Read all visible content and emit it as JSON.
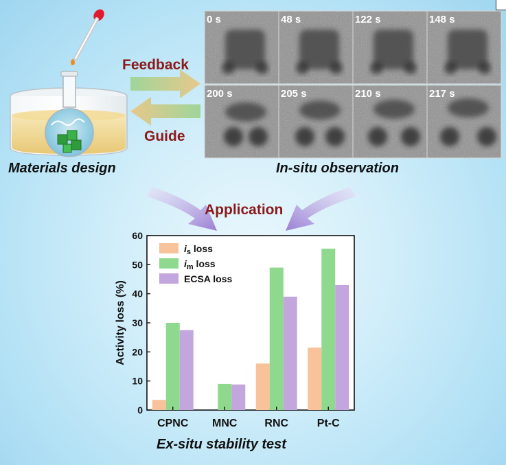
{
  "labels": {
    "feedback": "Feedback",
    "guide": "Guide",
    "materials_design": "Materials design",
    "in_situ_observation": "In-situ observation",
    "application": "Application",
    "ex_situ_stability_test": "Ex-situ stability test"
  },
  "frames": [
    {
      "time": "0 s"
    },
    {
      "time": "48 s"
    },
    {
      "time": "122 s"
    },
    {
      "time": "148 s"
    },
    {
      "time": "200 s"
    },
    {
      "time": "205 s"
    },
    {
      "time": "210 s"
    },
    {
      "time": "217 s"
    }
  ],
  "colors": {
    "feedback_arrow": "#e8c88a",
    "guide_arrow": "#9fd59a",
    "application_arrow": "#a98fd8",
    "is_loss": "#f8c39a",
    "im_loss": "#8fd98f",
    "ecsa_loss": "#c3a6de",
    "label_red": "#8b1a1a"
  },
  "chart_data": {
    "type": "bar",
    "categories": [
      "CPNC",
      "MNC",
      "RNC",
      "Pt-C"
    ],
    "series": [
      {
        "name": "is loss",
        "values": [
          3.5,
          0,
          16,
          21.5
        ]
      },
      {
        "name": "im loss",
        "values": [
          30,
          9,
          49,
          55.5
        ]
      },
      {
        "name": "ECSA loss",
        "values": [
          27.5,
          8.8,
          39,
          43
        ]
      }
    ],
    "legend_names": [
      {
        "sym": "i",
        "sub": "s",
        "text": "loss"
      },
      {
        "sym": "i",
        "sub": "m",
        "text": "loss"
      },
      {
        "sym": "",
        "sub": "",
        "text": "ECSA loss"
      }
    ],
    "ylabel": "Activity loss (%)",
    "xlabel": "",
    "ylim": [
      0,
      60
    ],
    "yticks": [
      0,
      10,
      20,
      30,
      40,
      50,
      60
    ],
    "legend_position": "top-left",
    "grid": false
  }
}
